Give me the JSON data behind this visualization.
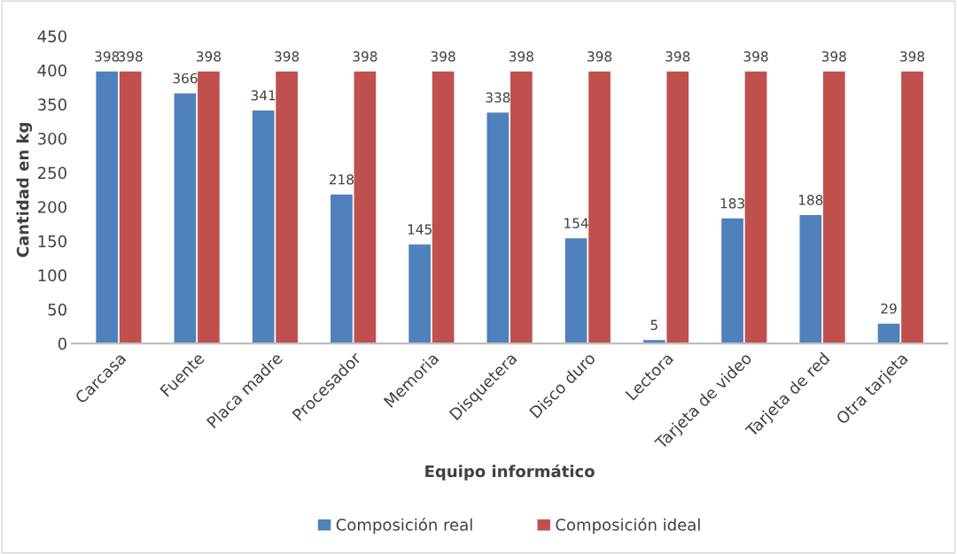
{
  "chart_data": {
    "type": "bar",
    "xlabel": "Equipo informático",
    "ylabel": "Cantidad en kg",
    "categories": [
      "Carcasa",
      "Fuente",
      "Placa madre",
      "Procesador",
      "Memoria",
      "Disquetera",
      "Disco duro",
      "Lectora",
      "Tarjeta de video",
      "Tarjeta de red",
      "Otra tarjeta"
    ],
    "series": [
      {
        "name": "Composición real",
        "color": "#4f81bd",
        "values": [
          398,
          366,
          341,
          218,
          145,
          338,
          154,
          5,
          183,
          188,
          29
        ]
      },
      {
        "name": "Composición ideal",
        "color": "#c0504d",
        "values": [
          398,
          398,
          398,
          398,
          398,
          398,
          398,
          398,
          398,
          398,
          398
        ]
      }
    ],
    "ylim": [
      0,
      450
    ],
    "yticks": [
      0,
      50,
      100,
      150,
      200,
      250,
      300,
      350,
      400,
      450
    ],
    "data_labels": true,
    "grid": false,
    "legend": "bottom"
  }
}
